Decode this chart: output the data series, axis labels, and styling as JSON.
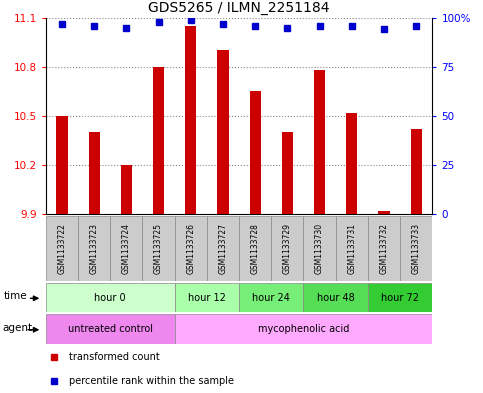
{
  "title": "GDS5265 / ILMN_2251184",
  "samples": [
    "GSM1133722",
    "GSM1133723",
    "GSM1133724",
    "GSM1133725",
    "GSM1133726",
    "GSM1133727",
    "GSM1133728",
    "GSM1133729",
    "GSM1133730",
    "GSM1133731",
    "GSM1133732",
    "GSM1133733"
  ],
  "bar_values": [
    10.5,
    10.4,
    10.2,
    10.8,
    11.05,
    10.9,
    10.65,
    10.4,
    10.78,
    10.52,
    9.92,
    10.42
  ],
  "percentile_values": [
    97,
    96,
    95,
    98,
    99,
    97,
    96,
    95,
    96,
    96,
    94,
    96
  ],
  "bar_color": "#cc0000",
  "percentile_color": "#0000cc",
  "ymin": 9.9,
  "ymax": 11.1,
  "ytick_vals": [
    9.9,
    10.2,
    10.5,
    10.8,
    11.1
  ],
  "ytick_labels": [
    "9.9",
    "10.2",
    "10.5",
    "10.8",
    "11.1"
  ],
  "right_ytick_vals": [
    0,
    25,
    50,
    75,
    100
  ],
  "right_ytick_labels": [
    "0",
    "25",
    "50",
    "75",
    "100%"
  ],
  "time_groups": [
    {
      "label": "hour 0",
      "start": 0,
      "end": 4,
      "color": "#ccffcc"
    },
    {
      "label": "hour 12",
      "start": 4,
      "end": 6,
      "color": "#aaffaa"
    },
    {
      "label": "hour 24",
      "start": 6,
      "end": 8,
      "color": "#77ee77"
    },
    {
      "label": "hour 48",
      "start": 8,
      "end": 10,
      "color": "#55dd55"
    },
    {
      "label": "hour 72",
      "start": 10,
      "end": 12,
      "color": "#33cc33"
    }
  ],
  "agent_groups": [
    {
      "label": "untreated control",
      "start": 0,
      "end": 4,
      "color": "#ee88ee"
    },
    {
      "label": "mycophenolic acid",
      "start": 4,
      "end": 12,
      "color": "#ffaaff"
    }
  ],
  "sample_box_color": "#cccccc",
  "sample_box_edge": "#888888",
  "background_color": "#ffffff",
  "plot_bg_color": "#ffffff",
  "grid_color": "#888888",
  "legend_items": [
    {
      "label": "transformed count",
      "color": "#cc0000"
    },
    {
      "label": "percentile rank within the sample",
      "color": "#0000cc"
    }
  ],
  "bar_width": 0.35
}
